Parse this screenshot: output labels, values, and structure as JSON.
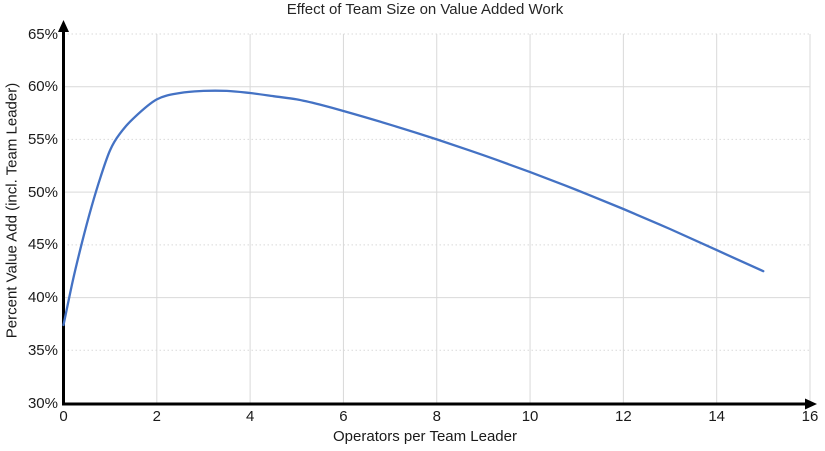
{
  "title": "Effect of Team Size on Value Added Work",
  "colors": {
    "line": "#4472C4",
    "gridline_major": "#D9D9D9",
    "gridline_minor": "#D9D9D9",
    "axis": "#000000",
    "text": "#1A1A1A"
  },
  "chart_data": {
    "type": "line",
    "title": "Effect of Team Size on Value Added Work",
    "xlabel": "Operators per Team Leader",
    "ylabel": "Percent Value Add (incl. Team Leader)",
    "xlim": [
      0,
      16
    ],
    "ylim": [
      30,
      65
    ],
    "x_ticks": [
      0,
      2,
      4,
      6,
      8,
      10,
      12,
      14,
      16
    ],
    "x_tick_labels": [
      "0",
      "2",
      "4",
      "6",
      "8",
      "10",
      "12",
      "14",
      "16"
    ],
    "y_ticks": [
      30,
      35,
      40,
      45,
      50,
      55,
      60,
      65
    ],
    "y_tick_labels": [
      "30%",
      "35%",
      "40%",
      "45%",
      "50%",
      "55%",
      "60%",
      "65%"
    ],
    "grid": "vertical solid at even x; horizontal solid at 40/50/60, dotted at 35/45/55/65",
    "legend": "none",
    "axes_arrows": true,
    "x": [
      0,
      1,
      2,
      3,
      4,
      5,
      6,
      7,
      8,
      9,
      10,
      11,
      12,
      13,
      14,
      15
    ],
    "y": [
      37.4,
      54.0,
      58.8,
      59.6,
      59.4,
      58.8,
      57.7,
      56.4,
      55.0,
      53.5,
      51.9,
      50.2,
      48.4,
      46.5,
      44.5,
      42.5
    ],
    "peak": {
      "x": 3.3,
      "y": 59.6
    },
    "curve_points": [
      [
        0,
        37.4
      ],
      [
        0.2,
        41.6
      ],
      [
        0.4,
        45.3
      ],
      [
        0.6,
        48.6
      ],
      [
        0.8,
        51.5
      ],
      [
        1.0,
        54.0
      ],
      [
        1.2,
        55.5
      ],
      [
        1.5,
        57.0
      ],
      [
        2,
        58.8
      ],
      [
        2.5,
        59.4
      ],
      [
        3,
        59.6
      ],
      [
        3.5,
        59.6
      ],
      [
        4,
        59.4
      ],
      [
        4.5,
        59.1
      ],
      [
        5,
        58.8
      ],
      [
        5.5,
        58.3
      ],
      [
        6,
        57.7
      ],
      [
        7,
        56.4
      ],
      [
        8,
        55.0
      ],
      [
        9,
        53.5
      ],
      [
        10,
        51.9
      ],
      [
        11,
        50.2
      ],
      [
        12,
        48.4
      ],
      [
        13,
        46.5
      ],
      [
        14,
        44.5
      ],
      [
        15,
        42.5
      ]
    ]
  }
}
